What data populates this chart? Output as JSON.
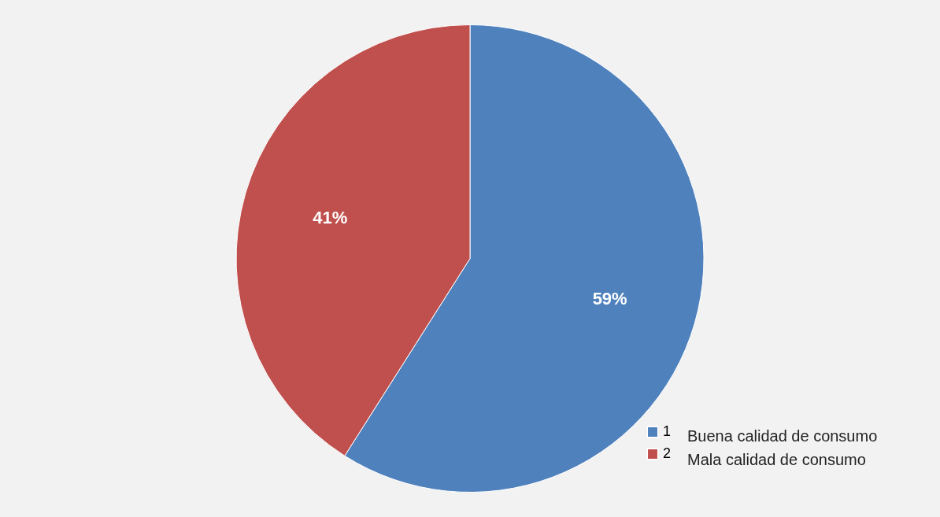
{
  "chart_data": {
    "type": "pie",
    "categories": [
      "1",
      "2"
    ],
    "values": [
      59,
      41
    ],
    "colors": [
      "#4f81bd",
      "#c0504d"
    ],
    "value_labels": [
      "59%",
      "41%"
    ],
    "legend": "bottom right",
    "annotations": [
      "Buena calidad de consumo",
      "Mala calidad de consumo"
    ]
  }
}
